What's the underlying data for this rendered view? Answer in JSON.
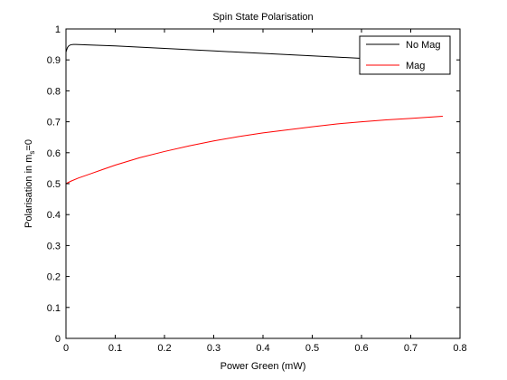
{
  "chart_data": {
    "type": "line",
    "title": "Spin State Polarisation",
    "xlabel": "Power Green (mW)",
    "ylabel": {
      "prefix": "Polarisation in m",
      "subscript": "s",
      "suffix": "=0"
    },
    "xlim": [
      0,
      0.8
    ],
    "ylim": [
      0,
      1
    ],
    "xticks": [
      0,
      0.1,
      0.2,
      0.3,
      0.4,
      0.5,
      0.6,
      0.7,
      0.8
    ],
    "xtick_labels": [
      "0",
      "0.1",
      "0.2",
      "0.3",
      "0.4",
      "0.5",
      "0.6",
      "0.7",
      "0.8"
    ],
    "yticks": [
      0,
      0.1,
      0.2,
      0.3,
      0.4,
      0.5,
      0.6,
      0.7,
      0.8,
      0.9,
      1
    ],
    "ytick_labels": [
      "0",
      "0.1",
      "0.2",
      "0.3",
      "0.4",
      "0.5",
      "0.6",
      "0.7",
      "0.8",
      "0.9",
      "1"
    ],
    "grid": false,
    "legend_position": "top-right",
    "series": [
      {
        "name": "No Mag",
        "color": "#000000",
        "x": [
          0,
          0.003,
          0.006,
          0.01,
          0.015,
          0.02,
          0.05,
          0.1,
          0.15,
          0.2,
          0.25,
          0.3,
          0.35,
          0.4,
          0.45,
          0.5,
          0.55,
          0.6,
          0.65,
          0.7,
          0.765
        ],
        "y": [
          0.925,
          0.94,
          0.946,
          0.949,
          0.95,
          0.95,
          0.948,
          0.945,
          0.941,
          0.937,
          0.933,
          0.929,
          0.925,
          0.921,
          0.917,
          0.913,
          0.909,
          0.905,
          0.901,
          0.897,
          0.892
        ]
      },
      {
        "name": "Mag",
        "color": "#ff0000",
        "x": [
          0,
          0.01,
          0.025,
          0.05,
          0.075,
          0.1,
          0.125,
          0.15,
          0.2,
          0.25,
          0.3,
          0.35,
          0.4,
          0.45,
          0.5,
          0.55,
          0.6,
          0.65,
          0.7,
          0.765
        ],
        "y": [
          0.5,
          0.508,
          0.518,
          0.532,
          0.546,
          0.56,
          0.572,
          0.584,
          0.604,
          0.622,
          0.638,
          0.652,
          0.664,
          0.674,
          0.684,
          0.693,
          0.7,
          0.706,
          0.711,
          0.718
        ]
      }
    ]
  }
}
